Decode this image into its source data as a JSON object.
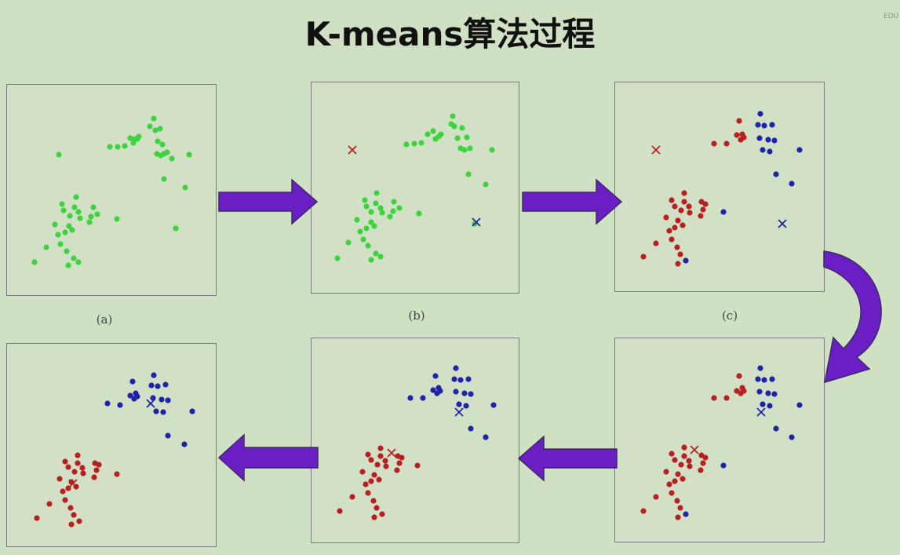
{
  "title": "K-means算法过程",
  "corner_mark": "EDU",
  "colors": {
    "unassigned": "#3fd23f",
    "cluster1": "#b72020",
    "cluster2": "#1d24a8",
    "arrow": "#6a1ec4",
    "arrow_stroke": "#3a2a66",
    "panel_bg": "#d2e0c6",
    "page_bg": "#cfe0c3"
  },
  "panels": [
    {
      "id": "a",
      "caption": "(a)",
      "points": [
        [
          66,
          89,
          0
        ],
        [
          131,
          79,
          0
        ],
        [
          141,
          79,
          0
        ],
        [
          150,
          78,
          0
        ],
        [
          157,
          68,
          0
        ],
        [
          161,
          74,
          0
        ],
        [
          163,
          69,
          0
        ],
        [
          166,
          69,
          0
        ],
        [
          168,
          66,
          0
        ],
        [
          187,
          43,
          0
        ],
        [
          182,
          53,
          0
        ],
        [
          189,
          58,
          0
        ],
        [
          195,
          56,
          0
        ],
        [
          192,
          72,
          0
        ],
        [
          198,
          76,
          0
        ],
        [
          204,
          86,
          0
        ],
        [
          191,
          88,
          0
        ],
        [
          196,
          90,
          0
        ],
        [
          200,
          88,
          0
        ],
        [
          210,
          94,
          0
        ],
        [
          232,
          89,
          0
        ],
        [
          200,
          120,
          0
        ],
        [
          227,
          131,
          0
        ],
        [
          215,
          183,
          0
        ],
        [
          88,
          143,
          0
        ],
        [
          70,
          152,
          0
        ],
        [
          72,
          160,
          0
        ],
        [
          86,
          156,
          0
        ],
        [
          91,
          162,
          0
        ],
        [
          80,
          167,
          0
        ],
        [
          93,
          170,
          0
        ],
        [
          110,
          156,
          0
        ],
        [
          107,
          168,
          0
        ],
        [
          115,
          165,
          0
        ],
        [
          140,
          171,
          0
        ],
        [
          105,
          175,
          0
        ],
        [
          61,
          178,
          0
        ],
        [
          79,
          180,
          0
        ],
        [
          83,
          185,
          0
        ],
        [
          74,
          188,
          0
        ],
        [
          65,
          191,
          0
        ],
        [
          68,
          203,
          0
        ],
        [
          50,
          207,
          0
        ],
        [
          76,
          212,
          0
        ],
        [
          85,
          221,
          0
        ],
        [
          91,
          226,
          0
        ],
        [
          78,
          230,
          0
        ],
        [
          35,
          226,
          0
        ]
      ],
      "centroids": []
    },
    {
      "id": "b",
      "caption": "(b)",
      "points": [
        [
          121,
          79,
          0
        ],
        [
          131,
          78,
          0
        ],
        [
          140,
          77,
          0
        ],
        [
          148,
          66,
          0
        ],
        [
          155,
          62,
          0
        ],
        [
          158,
          72,
          0
        ],
        [
          162,
          69,
          0
        ],
        [
          165,
          66,
          0
        ],
        [
          180,
          43,
          0
        ],
        [
          178,
          53,
          0
        ],
        [
          182,
          56,
          0
        ],
        [
          192,
          58,
          0
        ],
        [
          186,
          71,
          0
        ],
        [
          198,
          70,
          0
        ],
        [
          190,
          84,
          0
        ],
        [
          195,
          86,
          0
        ],
        [
          202,
          84,
          0
        ],
        [
          230,
          86,
          0
        ],
        [
          200,
          117,
          0
        ],
        [
          222,
          130,
          0
        ],
        [
          208,
          180,
          0
        ],
        [
          83,
          141,
          0
        ],
        [
          68,
          150,
          0
        ],
        [
          70,
          158,
          0
        ],
        [
          82,
          154,
          0
        ],
        [
          88,
          160,
          0
        ],
        [
          76,
          165,
          0
        ],
        [
          90,
          166,
          0
        ],
        [
          105,
          152,
          0
        ],
        [
          104,
          164,
          0
        ],
        [
          112,
          160,
          0
        ],
        [
          137,
          167,
          0
        ],
        [
          100,
          171,
          0
        ],
        [
          58,
          175,
          0
        ],
        [
          76,
          178,
          0
        ],
        [
          80,
          183,
          0
        ],
        [
          70,
          186,
          0
        ],
        [
          62,
          190,
          0
        ],
        [
          66,
          200,
          0
        ],
        [
          47,
          204,
          0
        ],
        [
          72,
          208,
          0
        ],
        [
          82,
          218,
          0
        ],
        [
          88,
          222,
          0
        ],
        [
          76,
          226,
          0
        ],
        [
          33,
          224,
          0
        ]
      ],
      "centroids": [
        [
          52,
          86,
          1
        ],
        [
          210,
          178,
          2
        ]
      ]
    },
    {
      "id": "c",
      "caption": "(c)",
      "points": [
        [
          126,
          78,
          1
        ],
        [
          142,
          78,
          1
        ],
        [
          155,
          67,
          1
        ],
        [
          160,
          73,
          1
        ],
        [
          162,
          66,
          1
        ],
        [
          164,
          70,
          1
        ],
        [
          158,
          49,
          1
        ],
        [
          185,
          40,
          2
        ],
        [
          182,
          54,
          2
        ],
        [
          190,
          55,
          2
        ],
        [
          200,
          54,
          2
        ],
        [
          184,
          71,
          2
        ],
        [
          195,
          73,
          2
        ],
        [
          203,
          74,
          2
        ],
        [
          188,
          86,
          2
        ],
        [
          197,
          88,
          2
        ],
        [
          235,
          86,
          2
        ],
        [
          205,
          117,
          2
        ],
        [
          225,
          129,
          2
        ],
        [
          138,
          165,
          2
        ],
        [
          88,
          141,
          1
        ],
        [
          72,
          150,
          1
        ],
        [
          76,
          158,
          1
        ],
        [
          88,
          152,
          1
        ],
        [
          94,
          158,
          1
        ],
        [
          84,
          163,
          1
        ],
        [
          95,
          166,
          1
        ],
        [
          110,
          152,
          1
        ],
        [
          112,
          162,
          1
        ],
        [
          115,
          155,
          1
        ],
        [
          109,
          170,
          1
        ],
        [
          65,
          172,
          1
        ],
        [
          80,
          176,
          1
        ],
        [
          86,
          182,
          1
        ],
        [
          76,
          185,
          1
        ],
        [
          69,
          189,
          1
        ],
        [
          72,
          200,
          1
        ],
        [
          52,
          205,
          1
        ],
        [
          79,
          210,
          1
        ],
        [
          83,
          219,
          1
        ],
        [
          90,
          227,
          2
        ],
        [
          80,
          231,
          1
        ],
        [
          36,
          222,
          1
        ]
      ],
      "centroids": [
        [
          52,
          86,
          1
        ],
        [
          213,
          180,
          2
        ]
      ]
    },
    {
      "id": "d",
      "caption": "",
      "points": [
        [
          126,
          76,
          1
        ],
        [
          142,
          76,
          1
        ],
        [
          155,
          67,
          1
        ],
        [
          160,
          70,
          1
        ],
        [
          162,
          63,
          1
        ],
        [
          164,
          67,
          1
        ],
        [
          158,
          48,
          1
        ],
        [
          185,
          38,
          2
        ],
        [
          182,
          52,
          2
        ],
        [
          190,
          53,
          2
        ],
        [
          200,
          52,
          2
        ],
        [
          184,
          68,
          2
        ],
        [
          195,
          70,
          2
        ],
        [
          203,
          71,
          2
        ],
        [
          188,
          84,
          2
        ],
        [
          197,
          86,
          2
        ],
        [
          235,
          85,
          2
        ],
        [
          205,
          115,
          2
        ],
        [
          225,
          126,
          2
        ],
        [
          138,
          162,
          2
        ],
        [
          88,
          139,
          1
        ],
        [
          72,
          147,
          1
        ],
        [
          76,
          155,
          1
        ],
        [
          88,
          150,
          1
        ],
        [
          94,
          156,
          1
        ],
        [
          84,
          161,
          1
        ],
        [
          95,
          163,
          1
        ],
        [
          110,
          149,
          1
        ],
        [
          112,
          159,
          1
        ],
        [
          115,
          152,
          1
        ],
        [
          109,
          168,
          1
        ],
        [
          65,
          170,
          1
        ],
        [
          80,
          173,
          1
        ],
        [
          86,
          179,
          1
        ],
        [
          76,
          182,
          1
        ],
        [
          69,
          186,
          1
        ],
        [
          72,
          197,
          1
        ],
        [
          52,
          202,
          1
        ],
        [
          79,
          207,
          1
        ],
        [
          83,
          216,
          1
        ],
        [
          90,
          224,
          2
        ],
        [
          80,
          228,
          1
        ],
        [
          36,
          220,
          1
        ]
      ],
      "centroids": [
        [
          186,
          94,
          2
        ],
        [
          101,
          142,
          1
        ]
      ]
    },
    {
      "id": "e",
      "caption": "",
      "points": [
        [
          126,
          76,
          2
        ],
        [
          142,
          76,
          2
        ],
        [
          155,
          66,
          2
        ],
        [
          160,
          70,
          2
        ],
        [
          162,
          63,
          2
        ],
        [
          164,
          67,
          2
        ],
        [
          158,
          48,
          2
        ],
        [
          184,
          38,
          2
        ],
        [
          182,
          52,
          2
        ],
        [
          190,
          53,
          2
        ],
        [
          200,
          52,
          2
        ],
        [
          184,
          68,
          2
        ],
        [
          195,
          70,
          2
        ],
        [
          203,
          71,
          2
        ],
        [
          188,
          84,
          2
        ],
        [
          197,
          86,
          2
        ],
        [
          232,
          85,
          2
        ],
        [
          203,
          115,
          2
        ],
        [
          222,
          126,
          2
        ],
        [
          135,
          162,
          1
        ],
        [
          88,
          140,
          1
        ],
        [
          72,
          148,
          1
        ],
        [
          76,
          155,
          1
        ],
        [
          88,
          150,
          1
        ],
        [
          94,
          156,
          1
        ],
        [
          84,
          161,
          1
        ],
        [
          95,
          163,
          1
        ],
        [
          110,
          150,
          1
        ],
        [
          112,
          159,
          1
        ],
        [
          115,
          152,
          1
        ],
        [
          109,
          168,
          1
        ],
        [
          65,
          170,
          1
        ],
        [
          80,
          174,
          1
        ],
        [
          86,
          180,
          1
        ],
        [
          76,
          182,
          1
        ],
        [
          69,
          186,
          1
        ],
        [
          72,
          197,
          1
        ],
        [
          52,
          202,
          1
        ],
        [
          79,
          207,
          1
        ],
        [
          83,
          216,
          1
        ],
        [
          90,
          224,
          1
        ],
        [
          80,
          228,
          1
        ],
        [
          36,
          220,
          1
        ]
      ],
      "centroids": [
        [
          188,
          94,
          2
        ],
        [
          102,
          146,
          1
        ]
      ]
    },
    {
      "id": "f",
      "caption": "",
      "points": [
        [
          128,
          76,
          2
        ],
        [
          144,
          78,
          2
        ],
        [
          157,
          66,
          2
        ],
        [
          162,
          70,
          2
        ],
        [
          164,
          63,
          2
        ],
        [
          166,
          67,
          2
        ],
        [
          160,
          48,
          2
        ],
        [
          187,
          40,
          2
        ],
        [
          184,
          53,
          2
        ],
        [
          192,
          54,
          2
        ],
        [
          202,
          52,
          2
        ],
        [
          186,
          69,
          2
        ],
        [
          197,
          71,
          2
        ],
        [
          205,
          72,
          2
        ],
        [
          190,
          86,
          2
        ],
        [
          199,
          87,
          2
        ],
        [
          236,
          86,
          2
        ],
        [
          205,
          117,
          2
        ],
        [
          226,
          128,
          2
        ],
        [
          140,
          166,
          1
        ],
        [
          90,
          142,
          1
        ],
        [
          74,
          150,
          1
        ],
        [
          78,
          157,
          1
        ],
        [
          90,
          152,
          1
        ],
        [
          96,
          158,
          1
        ],
        [
          86,
          163,
          1
        ],
        [
          97,
          165,
          1
        ],
        [
          112,
          152,
          1
        ],
        [
          114,
          161,
          1
        ],
        [
          117,
          154,
          1
        ],
        [
          111,
          170,
          1
        ],
        [
          67,
          172,
          1
        ],
        [
          82,
          176,
          1
        ],
        [
          88,
          182,
          1
        ],
        [
          78,
          184,
          1
        ],
        [
          71,
          188,
          1
        ],
        [
          74,
          199,
          1
        ],
        [
          54,
          204,
          1
        ],
        [
          81,
          209,
          1
        ],
        [
          85,
          218,
          1
        ],
        [
          92,
          226,
          1
        ],
        [
          82,
          230,
          1
        ],
        [
          38,
          222,
          1
        ]
      ],
      "centroids": [
        [
          183,
          76,
          2
        ],
        [
          84,
          178,
          1
        ]
      ]
    }
  ],
  "arrows": [
    {
      "id": "a-to-b",
      "direction": "right"
    },
    {
      "id": "b-to-c",
      "direction": "right"
    },
    {
      "id": "c-to-d",
      "direction": "curve-down"
    },
    {
      "id": "d-to-e",
      "direction": "left"
    },
    {
      "id": "e-to-f",
      "direction": "left"
    }
  ]
}
